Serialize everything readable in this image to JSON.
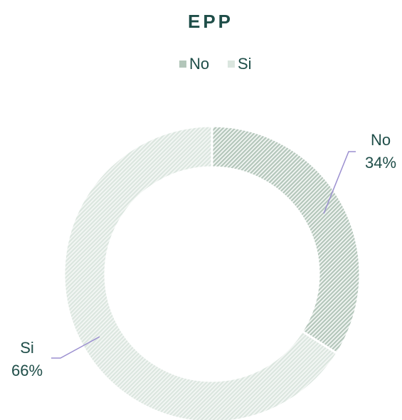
{
  "chart_data": {
    "type": "pie",
    "title": "EPP",
    "categories": [
      "No",
      "Si"
    ],
    "values": [
      34,
      66
    ],
    "value_labels": [
      "34%",
      "66%"
    ],
    "colors": [
      "#b3c6ba",
      "#dbe6df"
    ],
    "legend": "top"
  }
}
